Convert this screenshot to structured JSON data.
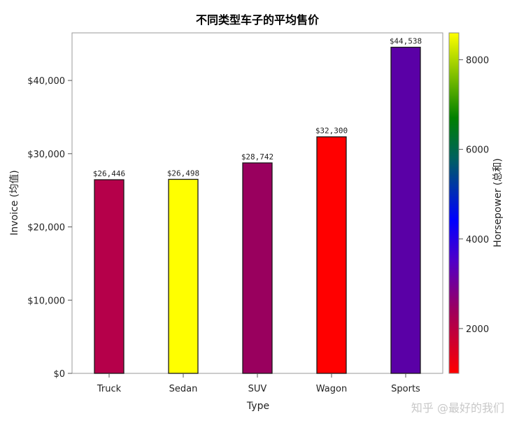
{
  "chart_data": {
    "type": "bar",
    "title": "不同类型车子的平均售价",
    "xlabel": "Type",
    "ylabel": "Invoice (均值)",
    "categories": [
      "Truck",
      "Sedan",
      "SUV",
      "Wagon",
      "Sports"
    ],
    "values": [
      26446,
      26498,
      28742,
      32300,
      44538
    ],
    "data_labels": [
      "$26,446",
      "$26,498",
      "$28,742",
      "$32,300",
      "$44,538"
    ],
    "bar_colors": [
      "#b5004a",
      "#ffff00",
      "#99005e",
      "#ff0000",
      "#5a00a6"
    ],
    "ylim": [
      0,
      46500
    ],
    "yticks": [
      0,
      10000,
      20000,
      30000,
      40000
    ],
    "ytick_labels": [
      "$0",
      "$10,000",
      "$20,000",
      "$30,000",
      "$40,000"
    ],
    "grid": false,
    "colorbar": {
      "label": "Horsepower (总和)",
      "range": [
        1000,
        8600
      ],
      "ticks": [
        2000,
        4000,
        6000,
        8000
      ],
      "tick_labels": [
        "2000",
        "4000",
        "6000",
        "8000"
      ],
      "stops": [
        {
          "offset": 0.0,
          "color": "#ff0000"
        },
        {
          "offset": 0.18,
          "color": "#a0005a"
        },
        {
          "offset": 0.33,
          "color": "#5000c8"
        },
        {
          "offset": 0.45,
          "color": "#0000ff"
        },
        {
          "offset": 0.63,
          "color": "#006060"
        },
        {
          "offset": 0.75,
          "color": "#008000"
        },
        {
          "offset": 1.0,
          "color": "#ffff00"
        }
      ]
    }
  },
  "watermark": "知乎 @最好的我们"
}
